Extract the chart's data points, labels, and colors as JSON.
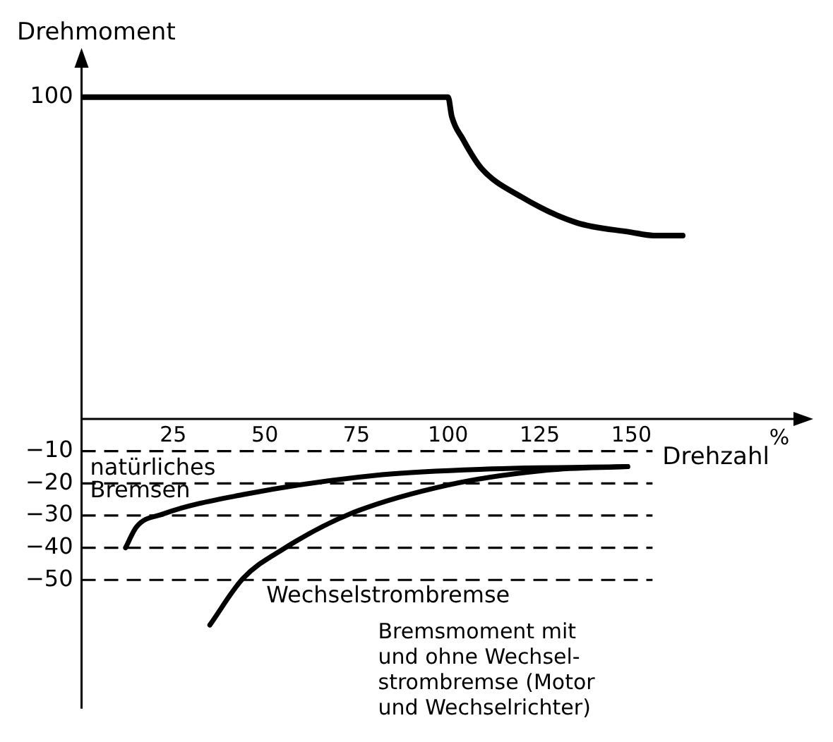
{
  "chart_data": {
    "type": "line",
    "ylabel": "Drehmoment",
    "xlabel": "Drehzahl",
    "xlim": [
      0,
      195
    ],
    "xticks": [
      25,
      50,
      75,
      100,
      125,
      150
    ],
    "ylim": [
      -90,
      110
    ],
    "yticks": [
      100,
      -10,
      -20,
      -30,
      -40,
      -50
    ],
    "grid": false,
    "legend": false,
    "marker": "none",
    "line_style": "solid",
    "series": [
      {
        "color": "#000000",
        "x": [
          0,
          100,
          101,
          104,
          109,
          120,
          135,
          150,
          156,
          164
        ],
        "values": [
          100,
          100,
          94,
          87,
          78,
          69,
          61,
          58,
          57,
          57
        ]
      },
      {
        "name": "natürliches Bremsen",
        "color": "#000000",
        "x": [
          12,
          15,
          22,
          44,
          82,
          112,
          149
        ],
        "values": [
          -40,
          -33.5,
          -29.6,
          -23.5,
          -17.3,
          -15.5,
          -14.8
        ]
      },
      {
        "name": "Wechselstrombremse",
        "color": "#000000",
        "x": [
          35,
          44,
          55,
          73,
          100,
          127,
          149
        ],
        "values": [
          -64,
          -49.6,
          -40.4,
          -29.6,
          -20.5,
          -15.9,
          -14.8
        ]
      }
    ],
    "ref_lines": [
      {
        "axis": "y",
        "value": -10,
        "line_style": "dashed",
        "color": "#000000"
      },
      {
        "axis": "y",
        "value": -20,
        "line_style": "dashed",
        "color": "#000000"
      },
      {
        "axis": "y",
        "value": -30,
        "line_style": "dashed",
        "color": "#000000"
      },
      {
        "axis": "y",
        "value": -40,
        "line_style": "dashed",
        "color": "#000000"
      },
      {
        "axis": "y",
        "value": -50,
        "line_style": "dashed",
        "color": "#000000"
      }
    ],
    "annotations": [
      "%",
      "Bremsmoment mit\nund ohne Wechsel-\nstrombremse (Motor\nund Wechselrichter)"
    ]
  }
}
